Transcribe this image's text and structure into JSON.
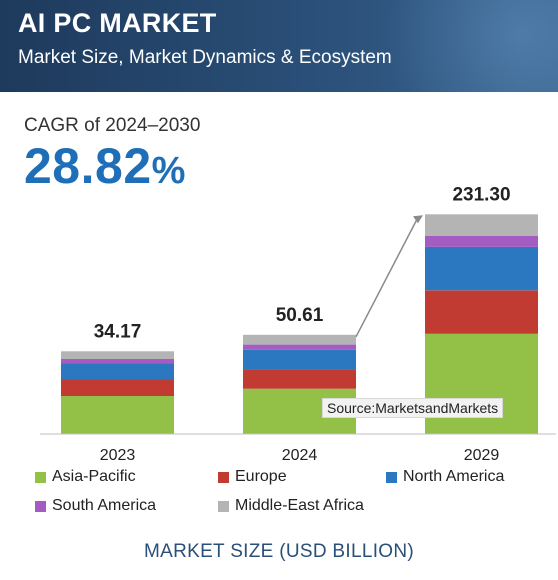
{
  "header": {
    "title": "AI PC MARKET",
    "subtitle": "Market Size, Market Dynamics & Ecosystem"
  },
  "cagr": {
    "label": "CAGR of 2024–2030",
    "value": "28.82",
    "unit": "%"
  },
  "source": "Source:MarketsandMarkets",
  "footer": "MARKET SIZE (USD BILLION)",
  "colors": {
    "asia_pacific": "#93c047",
    "europe": "#c23b33",
    "north_america": "#2b78c0",
    "south_america": "#a55cc2",
    "middle_east_africa": "#b4b4b4",
    "accent": "#1f6fb8"
  },
  "chart_data": {
    "type": "bar",
    "stacked": true,
    "categories": [
      "2023",
      "2024",
      "2029"
    ],
    "totals": [
      34.17,
      50.61,
      231.3
    ],
    "total_labels": [
      "34.17",
      "50.61",
      "231.30"
    ],
    "series": [
      {
        "name": "Asia-Pacific",
        "color": "#93c047",
        "values": [
          15.7,
          23.1,
          105.5
        ]
      },
      {
        "name": "Europe",
        "color": "#c23b33",
        "values": [
          6.8,
          10.0,
          45.7
        ]
      },
      {
        "name": "North America",
        "color": "#2b78c0",
        "values": [
          6.8,
          9.9,
          45.7
        ]
      },
      {
        "name": "South America",
        "color": "#a55cc2",
        "values": [
          1.7,
          2.6,
          11.7
        ]
      },
      {
        "name": "Middle-East Africa",
        "color": "#b4b4b4",
        "values": [
          3.17,
          5.01,
          22.7
        ]
      }
    ],
    "annotation": "growth arrow from 2024 to 2029",
    "legend_position": "bottom",
    "grid": false,
    "axis_scale": "broken (values not drawn to linear scale)"
  }
}
